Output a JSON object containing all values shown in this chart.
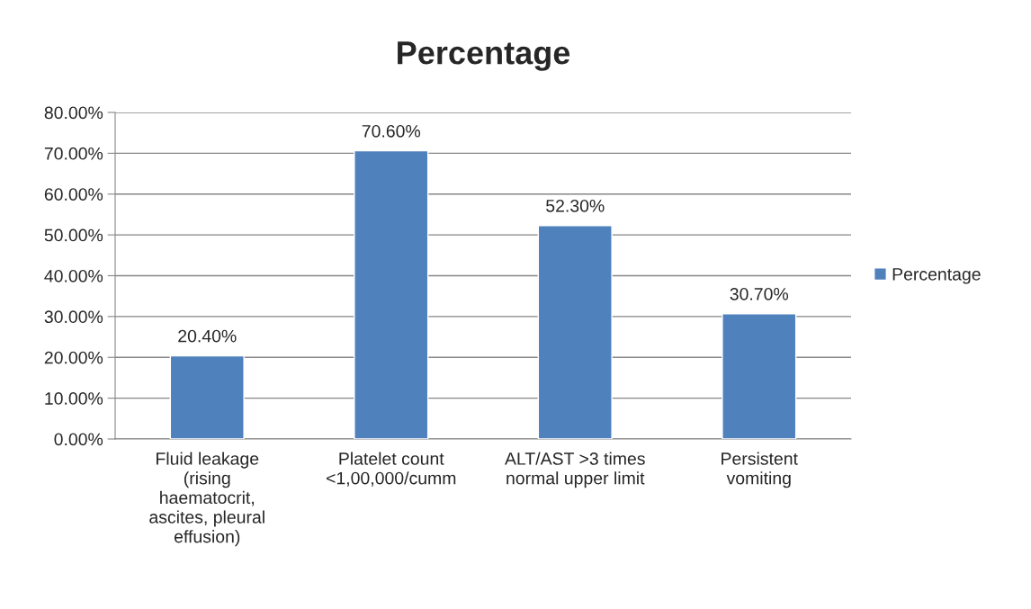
{
  "chart_data": {
    "type": "bar",
    "title": "Percentage",
    "categories": [
      "Fluid leakage\n(rising\nhaematocrit,\nascites, pleural\neffusion)",
      "Platelet count\n<1,00,000/cumm",
      "ALT/AST >3 times\nnormal upper limit",
      "Persistent\nvomiting"
    ],
    "series": [
      {
        "name": "Percentage",
        "color": "#4f81bd",
        "values": [
          20.4,
          70.6,
          52.3,
          30.7
        ],
        "value_labels": [
          "20.40%",
          "70.60%",
          "52.30%",
          "30.70%"
        ]
      }
    ],
    "ylim": [
      0,
      80
    ],
    "yticks": [
      {
        "value": 0,
        "label": "0.00%"
      },
      {
        "value": 10,
        "label": "10.00%"
      },
      {
        "value": 20,
        "label": "20.00%"
      },
      {
        "value": 30,
        "label": "30.00%"
      },
      {
        "value": 40,
        "label": "40.00%"
      },
      {
        "value": 50,
        "label": "50.00%"
      },
      {
        "value": 60,
        "label": "60.00%"
      },
      {
        "value": 70,
        "label": "70.00%"
      },
      {
        "value": 80,
        "label": "80.00%"
      }
    ],
    "grid": "y",
    "legend": "right"
  }
}
